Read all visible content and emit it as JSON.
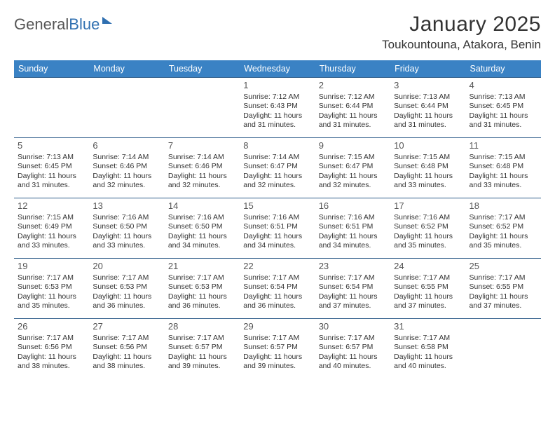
{
  "brand": {
    "part1": "General",
    "part2": "Blue"
  },
  "title": "January 2025",
  "location": "Toukountouna, Atakora, Benin",
  "colors": {
    "header_bg": "#3a82c4",
    "header_text": "#ffffff",
    "row_border": "#2f5d8a",
    "text": "#333333",
    "daynum": "#555555",
    "brand_blue": "#2f6fb0"
  },
  "weekdays": [
    "Sunday",
    "Monday",
    "Tuesday",
    "Wednesday",
    "Thursday",
    "Friday",
    "Saturday"
  ],
  "weeks": [
    [
      null,
      null,
      null,
      {
        "n": "1",
        "sr": "7:12 AM",
        "ss": "6:43 PM",
        "dl": "11 hours and 31 minutes."
      },
      {
        "n": "2",
        "sr": "7:12 AM",
        "ss": "6:44 PM",
        "dl": "11 hours and 31 minutes."
      },
      {
        "n": "3",
        "sr": "7:13 AM",
        "ss": "6:44 PM",
        "dl": "11 hours and 31 minutes."
      },
      {
        "n": "4",
        "sr": "7:13 AM",
        "ss": "6:45 PM",
        "dl": "11 hours and 31 minutes."
      }
    ],
    [
      {
        "n": "5",
        "sr": "7:13 AM",
        "ss": "6:45 PM",
        "dl": "11 hours and 31 minutes."
      },
      {
        "n": "6",
        "sr": "7:14 AM",
        "ss": "6:46 PM",
        "dl": "11 hours and 32 minutes."
      },
      {
        "n": "7",
        "sr": "7:14 AM",
        "ss": "6:46 PM",
        "dl": "11 hours and 32 minutes."
      },
      {
        "n": "8",
        "sr": "7:14 AM",
        "ss": "6:47 PM",
        "dl": "11 hours and 32 minutes."
      },
      {
        "n": "9",
        "sr": "7:15 AM",
        "ss": "6:47 PM",
        "dl": "11 hours and 32 minutes."
      },
      {
        "n": "10",
        "sr": "7:15 AM",
        "ss": "6:48 PM",
        "dl": "11 hours and 33 minutes."
      },
      {
        "n": "11",
        "sr": "7:15 AM",
        "ss": "6:48 PM",
        "dl": "11 hours and 33 minutes."
      }
    ],
    [
      {
        "n": "12",
        "sr": "7:15 AM",
        "ss": "6:49 PM",
        "dl": "11 hours and 33 minutes."
      },
      {
        "n": "13",
        "sr": "7:16 AM",
        "ss": "6:50 PM",
        "dl": "11 hours and 33 minutes."
      },
      {
        "n": "14",
        "sr": "7:16 AM",
        "ss": "6:50 PM",
        "dl": "11 hours and 34 minutes."
      },
      {
        "n": "15",
        "sr": "7:16 AM",
        "ss": "6:51 PM",
        "dl": "11 hours and 34 minutes."
      },
      {
        "n": "16",
        "sr": "7:16 AM",
        "ss": "6:51 PM",
        "dl": "11 hours and 34 minutes."
      },
      {
        "n": "17",
        "sr": "7:16 AM",
        "ss": "6:52 PM",
        "dl": "11 hours and 35 minutes."
      },
      {
        "n": "18",
        "sr": "7:17 AM",
        "ss": "6:52 PM",
        "dl": "11 hours and 35 minutes."
      }
    ],
    [
      {
        "n": "19",
        "sr": "7:17 AM",
        "ss": "6:53 PM",
        "dl": "11 hours and 35 minutes."
      },
      {
        "n": "20",
        "sr": "7:17 AM",
        "ss": "6:53 PM",
        "dl": "11 hours and 36 minutes."
      },
      {
        "n": "21",
        "sr": "7:17 AM",
        "ss": "6:53 PM",
        "dl": "11 hours and 36 minutes."
      },
      {
        "n": "22",
        "sr": "7:17 AM",
        "ss": "6:54 PM",
        "dl": "11 hours and 36 minutes."
      },
      {
        "n": "23",
        "sr": "7:17 AM",
        "ss": "6:54 PM",
        "dl": "11 hours and 37 minutes."
      },
      {
        "n": "24",
        "sr": "7:17 AM",
        "ss": "6:55 PM",
        "dl": "11 hours and 37 minutes."
      },
      {
        "n": "25",
        "sr": "7:17 AM",
        "ss": "6:55 PM",
        "dl": "11 hours and 37 minutes."
      }
    ],
    [
      {
        "n": "26",
        "sr": "7:17 AM",
        "ss": "6:56 PM",
        "dl": "11 hours and 38 minutes."
      },
      {
        "n": "27",
        "sr": "7:17 AM",
        "ss": "6:56 PM",
        "dl": "11 hours and 38 minutes."
      },
      {
        "n": "28",
        "sr": "7:17 AM",
        "ss": "6:57 PM",
        "dl": "11 hours and 39 minutes."
      },
      {
        "n": "29",
        "sr": "7:17 AM",
        "ss": "6:57 PM",
        "dl": "11 hours and 39 minutes."
      },
      {
        "n": "30",
        "sr": "7:17 AM",
        "ss": "6:57 PM",
        "dl": "11 hours and 40 minutes."
      },
      {
        "n": "31",
        "sr": "7:17 AM",
        "ss": "6:58 PM",
        "dl": "11 hours and 40 minutes."
      },
      null
    ]
  ],
  "labels": {
    "sunrise": "Sunrise:",
    "sunset": "Sunset:",
    "daylight": "Daylight:"
  }
}
